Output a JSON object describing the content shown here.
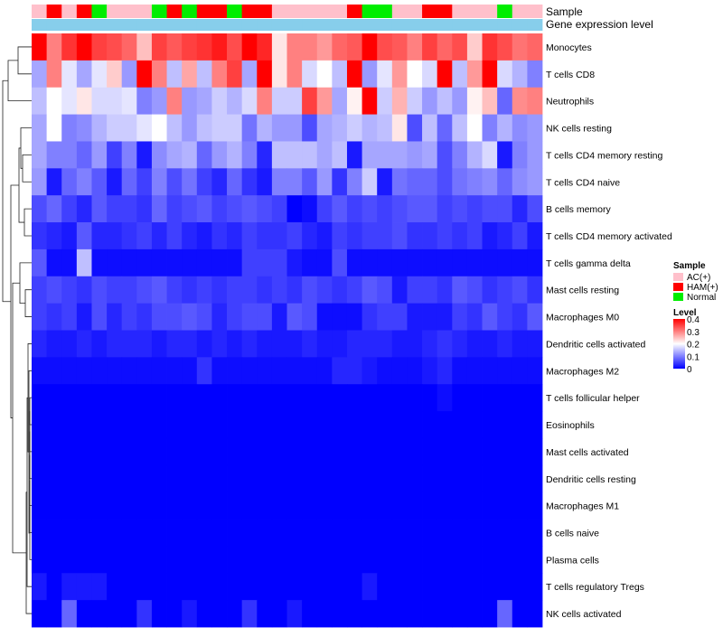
{
  "chart_data": {
    "type": "heatmap",
    "annotation_tracks": [
      "Sample",
      "Gene expression level"
    ],
    "sample_groups": [
      "AC(+)",
      "HAM(+)",
      "Normal"
    ],
    "sample_annotation": [
      "AC(+)",
      "HAM(+)",
      "AC(+)",
      "HAM(+)",
      "Normal",
      "AC(+)",
      "AC(+)",
      "AC(+)",
      "Normal",
      "HAM(+)",
      "Normal",
      "HAM(+)",
      "HAM(+)",
      "Normal",
      "HAM(+)",
      "HAM(+)",
      "AC(+)",
      "AC(+)",
      "AC(+)",
      "AC(+)",
      "AC(+)",
      "HAM(+)",
      "Normal",
      "Normal",
      "AC(+)",
      "AC(+)",
      "HAM(+)",
      "HAM(+)",
      "AC(+)",
      "AC(+)",
      "AC(+)",
      "Normal",
      "AC(+)",
      "AC(+)"
    ],
    "rows": [
      "Monocytes",
      "T cells CD8",
      "Neutrophils",
      "NK cells resting",
      "T cells CD4 memory resting",
      "T cells CD4 naive",
      "B cells memory",
      "T cells CD4 memory activated",
      "T cells gamma delta",
      "Mast cells resting",
      "Macrophages M0",
      "Dendritic cells activated",
      "Macrophages M2",
      "T cells follicular helper",
      "Eosinophils",
      "Mast cells activated",
      "Dendritic cells resting",
      "Macrophages M1",
      "B cells naive",
      "Plasma cells",
      "T cells regulatory  Tregs",
      "NK cells activated"
    ],
    "values": [
      [
        0.4,
        0.3,
        0.36,
        0.4,
        0.35,
        0.34,
        0.32,
        0.25,
        0.35,
        0.33,
        0.35,
        0.36,
        0.38,
        0.34,
        0.4,
        0.37,
        0.22,
        0.3,
        0.3,
        0.28,
        0.32,
        0.33,
        0.4,
        0.34,
        0.33,
        0.3,
        0.35,
        0.32,
        0.34,
        0.24,
        0.36,
        0.34,
        0.31,
        0.32
      ],
      [
        0.13,
        0.3,
        0.18,
        0.13,
        0.18,
        0.24,
        0.12,
        0.4,
        0.3,
        0.15,
        0.27,
        0.15,
        0.3,
        0.35,
        0.13,
        0.4,
        0.22,
        0.3,
        0.17,
        0.2,
        0.15,
        0.4,
        0.12,
        0.18,
        0.28,
        0.2,
        0.17,
        0.4,
        0.15,
        0.28,
        0.4,
        0.17,
        0.14,
        0.1
      ],
      [
        0.15,
        0.2,
        0.18,
        0.22,
        0.17,
        0.17,
        0.18,
        0.1,
        0.12,
        0.3,
        0.12,
        0.13,
        0.16,
        0.14,
        0.17,
        0.3,
        0.16,
        0.16,
        0.35,
        0.28,
        0.13,
        0.21,
        0.4,
        0.16,
        0.26,
        0.16,
        0.12,
        0.15,
        0.12,
        0.21,
        0.25,
        0.08,
        0.29,
        0.3
      ],
      [
        0.13,
        0.2,
        0.1,
        0.11,
        0.14,
        0.16,
        0.16,
        0.18,
        0.2,
        0.15,
        0.12,
        0.15,
        0.16,
        0.16,
        0.09,
        0.14,
        0.12,
        0.12,
        0.06,
        0.13,
        0.14,
        0.16,
        0.14,
        0.15,
        0.22,
        0.06,
        0.15,
        0.08,
        0.15,
        0.2,
        0.1,
        0.14,
        0.11,
        0.12
      ],
      [
        0.13,
        0.1,
        0.1,
        0.08,
        0.12,
        0.05,
        0.1,
        0.02,
        0.11,
        0.13,
        0.14,
        0.08,
        0.12,
        0.14,
        0.1,
        0.03,
        0.15,
        0.15,
        0.15,
        0.13,
        0.15,
        0.02,
        0.13,
        0.13,
        0.13,
        0.12,
        0.13,
        0.06,
        0.1,
        0.14,
        0.17,
        0.02,
        0.1,
        0.12
      ],
      [
        0.12,
        0.02,
        0.08,
        0.1,
        0.07,
        0.02,
        0.08,
        0.05,
        0.1,
        0.06,
        0.09,
        0.05,
        0.03,
        0.08,
        0.04,
        0.02,
        0.1,
        0.1,
        0.07,
        0.12,
        0.04,
        0.1,
        0.16,
        0.02,
        0.09,
        0.08,
        0.08,
        0.06,
        0.09,
        0.1,
        0.11,
        0.08,
        0.11,
        0.12
      ],
      [
        0.06,
        0.08,
        0.05,
        0.03,
        0.07,
        0.05,
        0.05,
        0.04,
        0.08,
        0.05,
        0.06,
        0.07,
        0.05,
        0.06,
        0.07,
        0.06,
        0.05,
        0.0,
        0.01,
        0.05,
        0.07,
        0.05,
        0.06,
        0.05,
        0.06,
        0.07,
        0.07,
        0.05,
        0.06,
        0.05,
        0.06,
        0.06,
        0.03,
        0.06
      ],
      [
        0.04,
        0.03,
        0.02,
        0.07,
        0.03,
        0.03,
        0.04,
        0.05,
        0.03,
        0.05,
        0.03,
        0.02,
        0.04,
        0.03,
        0.05,
        0.04,
        0.04,
        0.05,
        0.03,
        0.02,
        0.05,
        0.04,
        0.05,
        0.05,
        0.06,
        0.04,
        0.04,
        0.05,
        0.04,
        0.05,
        0.02,
        0.03,
        0.05,
        0.02
      ],
      [
        0.07,
        0.01,
        0.01,
        0.15,
        0.01,
        0.01,
        0.01,
        0.01,
        0.01,
        0.01,
        0.01,
        0.01,
        0.01,
        0.01,
        0.05,
        0.05,
        0.05,
        0.02,
        0.01,
        0.01,
        0.06,
        0.01,
        0.01,
        0.01,
        0.01,
        0.01,
        0.01,
        0.01,
        0.01,
        0.01,
        0.01,
        0.01,
        0.01,
        0.01
      ],
      [
        0.05,
        0.06,
        0.05,
        0.04,
        0.06,
        0.05,
        0.05,
        0.06,
        0.07,
        0.05,
        0.04,
        0.05,
        0.04,
        0.05,
        0.05,
        0.04,
        0.05,
        0.04,
        0.06,
        0.05,
        0.04,
        0.05,
        0.07,
        0.06,
        0.02,
        0.05,
        0.05,
        0.04,
        0.07,
        0.06,
        0.04,
        0.05,
        0.06,
        0.04
      ],
      [
        0.05,
        0.04,
        0.05,
        0.02,
        0.06,
        0.03,
        0.05,
        0.04,
        0.06,
        0.06,
        0.07,
        0.06,
        0.03,
        0.05,
        0.06,
        0.06,
        0.02,
        0.07,
        0.06,
        0.01,
        0.01,
        0.01,
        0.04,
        0.05,
        0.05,
        0.02,
        0.02,
        0.02,
        0.05,
        0.04,
        0.07,
        0.05,
        0.04,
        0.07
      ],
      [
        0.03,
        0.02,
        0.02,
        0.03,
        0.02,
        0.03,
        0.03,
        0.03,
        0.02,
        0.03,
        0.03,
        0.02,
        0.03,
        0.02,
        0.03,
        0.02,
        0.02,
        0.02,
        0.03,
        0.02,
        0.02,
        0.03,
        0.03,
        0.03,
        0.02,
        0.02,
        0.03,
        0.04,
        0.03,
        0.02,
        0.02,
        0.03,
        0.02,
        0.02
      ],
      [
        0.01,
        0.01,
        0.01,
        0.01,
        0.01,
        0.01,
        0.01,
        0.01,
        0.01,
        0.01,
        0.01,
        0.04,
        0.01,
        0.01,
        0.01,
        0.01,
        0.01,
        0.01,
        0.01,
        0.01,
        0.03,
        0.03,
        0.02,
        0.01,
        0.01,
        0.01,
        0.02,
        0.03,
        0.01,
        0.01,
        0.01,
        0.01,
        0.01,
        0.01
      ],
      [
        0.0,
        0.0,
        0.0,
        0.0,
        0.0,
        0.0,
        0.0,
        0.0,
        0.0,
        0.0,
        0.0,
        0.0,
        0.0,
        0.0,
        0.0,
        0.0,
        0.0,
        0.0,
        0.0,
        0.0,
        0.0,
        0.0,
        0.0,
        0.0,
        0.0,
        0.0,
        0.0,
        0.01,
        0.0,
        0.0,
        0.0,
        0.0,
        0.0,
        0.0
      ],
      [
        0.0,
        0.0,
        0.0,
        0.0,
        0.0,
        0.0,
        0.0,
        0.0,
        0.0,
        0.0,
        0.0,
        0.0,
        0.0,
        0.0,
        0.0,
        0.0,
        0.0,
        0.0,
        0.0,
        0.0,
        0.0,
        0.0,
        0.0,
        0.0,
        0.0,
        0.0,
        0.0,
        0.0,
        0.0,
        0.0,
        0.0,
        0.0,
        0.0,
        0.0
      ],
      [
        0.0,
        0.0,
        0.0,
        0.0,
        0.0,
        0.0,
        0.0,
        0.0,
        0.0,
        0.0,
        0.0,
        0.0,
        0.0,
        0.0,
        0.0,
        0.0,
        0.0,
        0.0,
        0.0,
        0.0,
        0.0,
        0.0,
        0.0,
        0.0,
        0.0,
        0.0,
        0.0,
        0.0,
        0.0,
        0.0,
        0.0,
        0.0,
        0.0,
        0.0
      ],
      [
        0.0,
        0.0,
        0.0,
        0.0,
        0.0,
        0.0,
        0.0,
        0.0,
        0.0,
        0.0,
        0.0,
        0.0,
        0.0,
        0.0,
        0.0,
        0.0,
        0.0,
        0.0,
        0.0,
        0.0,
        0.0,
        0.0,
        0.0,
        0.0,
        0.0,
        0.0,
        0.0,
        0.0,
        0.0,
        0.0,
        0.0,
        0.0,
        0.0,
        0.0
      ],
      [
        0.0,
        0.0,
        0.0,
        0.0,
        0.0,
        0.0,
        0.0,
        0.0,
        0.0,
        0.0,
        0.0,
        0.0,
        0.0,
        0.0,
        0.0,
        0.0,
        0.0,
        0.0,
        0.0,
        0.0,
        0.0,
        0.0,
        0.0,
        0.0,
        0.0,
        0.0,
        0.0,
        0.0,
        0.0,
        0.0,
        0.0,
        0.0,
        0.0,
        0.0
      ],
      [
        0.0,
        0.0,
        0.0,
        0.0,
        0.0,
        0.0,
        0.0,
        0.0,
        0.0,
        0.0,
        0.0,
        0.0,
        0.0,
        0.0,
        0.0,
        0.0,
        0.0,
        0.0,
        0.0,
        0.0,
        0.0,
        0.0,
        0.0,
        0.0,
        0.0,
        0.0,
        0.0,
        0.0,
        0.0,
        0.0,
        0.0,
        0.0,
        0.0,
        0.0
      ],
      [
        0.0,
        0.0,
        0.0,
        0.0,
        0.0,
        0.0,
        0.0,
        0.0,
        0.0,
        0.0,
        0.0,
        0.0,
        0.0,
        0.0,
        0.0,
        0.0,
        0.0,
        0.0,
        0.0,
        0.0,
        0.0,
        0.0,
        0.0,
        0.0,
        0.0,
        0.0,
        0.0,
        0.0,
        0.0,
        0.0,
        0.0,
        0.0,
        0.0,
        0.0
      ],
      [
        0.02,
        0.0,
        0.02,
        0.02,
        0.02,
        0.0,
        0.0,
        0.0,
        0.0,
        0.0,
        0.0,
        0.0,
        0.0,
        0.0,
        0.0,
        0.0,
        0.0,
        0.0,
        0.0,
        0.0,
        0.0,
        0.0,
        0.02,
        0.0,
        0.0,
        0.0,
        0.0,
        0.0,
        0.0,
        0.0,
        0.0,
        0.0,
        0.0,
        0.0
      ],
      [
        0.0,
        0.0,
        0.08,
        0.0,
        0.0,
        0.0,
        0.0,
        0.04,
        0.0,
        0.0,
        0.02,
        0.0,
        0.0,
        0.0,
        0.04,
        0.0,
        0.0,
        0.02,
        0.0,
        0.0,
        0.0,
        0.0,
        0.0,
        0.0,
        0.0,
        0.0,
        0.0,
        0.0,
        0.0,
        0.0,
        0.0,
        0.08,
        0.0,
        0.0
      ]
    ],
    "legend": {
      "sample_title": "Sample",
      "sample_entries": [
        "AC(+)",
        "HAM(+)",
        "Normal"
      ],
      "level_title": "Level",
      "level_ticks": [
        "0.4",
        "0.3",
        "0.2",
        "0.1",
        "0"
      ],
      "level_tick_values": [
        0.4,
        0.3,
        0.2,
        0.1,
        0
      ],
      "level_range": [
        0,
        0.4
      ]
    },
    "colors": {
      "AC(+)": "#FFC0CB",
      "HAM(+)": "#FF0000",
      "Normal": "#00EE00",
      "expression_track": "#87CEEB",
      "low": "#0000FF",
      "mid": "#FFFFFF",
      "high": "#FF0000"
    }
  }
}
